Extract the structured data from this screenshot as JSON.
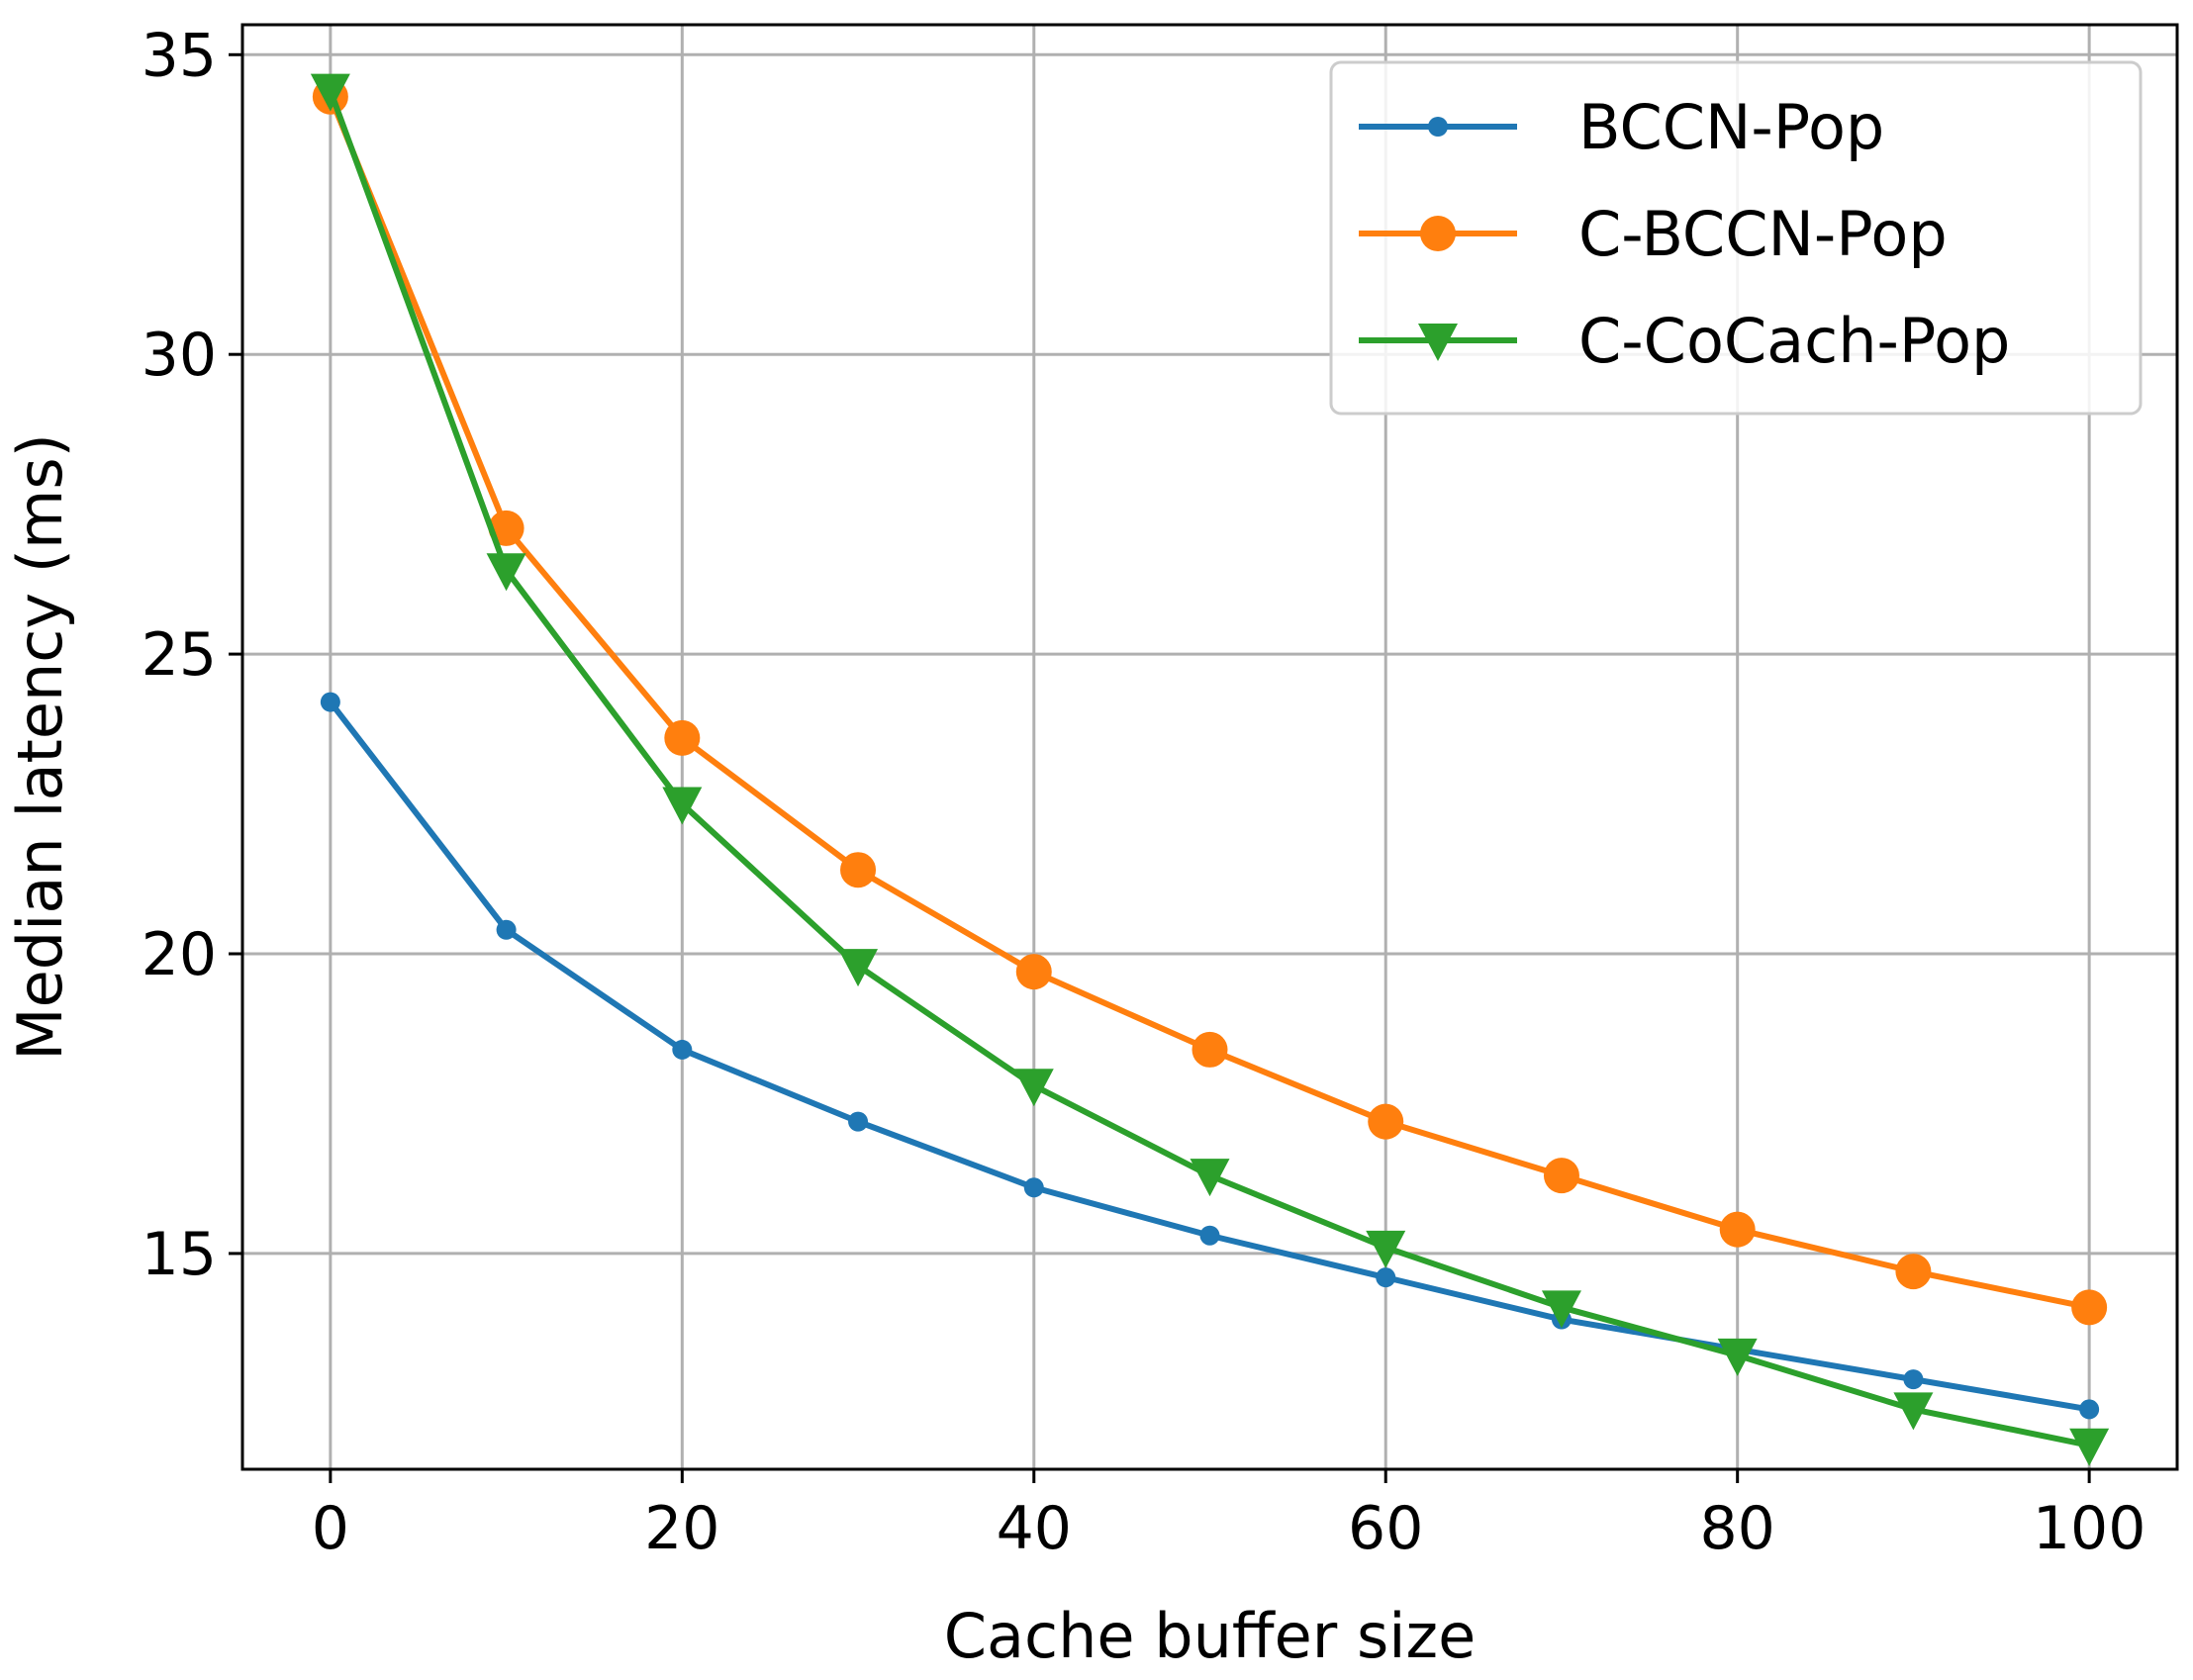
{
  "chart_data": {
    "type": "line",
    "title": "",
    "xlabel": "Cache buffer size",
    "ylabel": "Median latency (ms)",
    "xlim": [
      -5,
      105
    ],
    "ylim": [
      11.4,
      35.5
    ],
    "x": [
      0,
      10,
      20,
      30,
      40,
      50,
      60,
      70,
      80,
      90,
      100
    ],
    "xticks": [
      0,
      20,
      40,
      60,
      80,
      100
    ],
    "yticks": [
      15,
      20,
      25,
      30,
      35
    ],
    "grid": true,
    "legend_position": "top-right",
    "series": [
      {
        "name": "BCCN-Pop",
        "color": "#1f77b4",
        "marker": "small-circle",
        "values": [
          24.2,
          20.4,
          18.4,
          17.2,
          16.1,
          15.3,
          14.6,
          13.9,
          13.4,
          12.9,
          12.4
        ]
      },
      {
        "name": "C-BCCN-Pop",
        "color": "#ff7f0e",
        "marker": "circle",
        "values": [
          34.3,
          27.1,
          23.6,
          21.4,
          19.7,
          18.4,
          17.2,
          16.3,
          15.4,
          14.7,
          14.1
        ]
      },
      {
        "name": "C-CoCach-Pop",
        "color": "#2ca02c",
        "marker": "triangle-down",
        "values": [
          34.4,
          26.4,
          22.5,
          19.8,
          17.8,
          16.3,
          15.1,
          14.1,
          13.3,
          12.4,
          11.8
        ]
      }
    ]
  }
}
